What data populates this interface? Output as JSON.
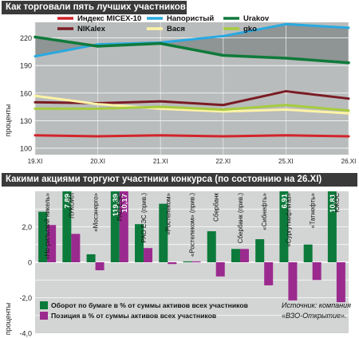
{
  "charts": {
    "top": {
      "title": "Как торговали пять лучших участников",
      "ylabel": "проценты"
    },
    "bottom": {
      "title": "Какими акциями торгуют участники конкурса (по состоянию на 26.XI)",
      "ylabel": "проценты",
      "source_line1": "Источник: компания",
      "source_line2": "«ВЗО-Открытие»."
    }
  },
  "chart_data": [
    {
      "type": "line",
      "title": "Как торговали пять лучших участников",
      "ylabel": "проценты",
      "x": [
        "19.XI",
        "20.XI",
        "21.XI",
        "22.XI",
        "25.XI",
        "26.XI"
      ],
      "yticks": [
        100,
        130,
        160,
        190,
        220
      ],
      "ylim": [
        93,
        237
      ],
      "grid": true,
      "legend": "top",
      "series": [
        {
          "name": "Индекс MICEX-10",
          "color": "#d2242a",
          "values": [
            114,
            113,
            114,
            113,
            114,
            113
          ]
        },
        {
          "name": "Напористый",
          "color": "#29a9e0",
          "values": [
            200,
            213,
            215,
            222,
            235,
            231
          ]
        },
        {
          "name": "Urakov",
          "color": "#0f7a3a",
          "values": [
            221,
            211,
            214,
            201,
            198,
            193
          ]
        },
        {
          "name": "NIKalex",
          "color": "#7a1c24",
          "values": [
            150,
            149,
            151,
            147,
            162,
            154
          ]
        },
        {
          "name": "Вася",
          "color": "#fff3a6",
          "values": [
            157,
            148,
            143,
            140,
            142,
            138
          ]
        },
        {
          "name": "gko",
          "color": "#a6cc3e",
          "values": [
            143,
            143,
            145,
            142,
            147,
            141
          ]
        }
      ]
    },
    {
      "type": "bar",
      "title": "Какими акциями торгуют участники конкурса (по состоянию на 26.XI)",
      "ylabel": "проценты",
      "categories": [
        "«Но-рильский никель»",
        "ЛУКОЙЛ",
        "«Мосэнерго»",
        "РАО ЕЭС",
        "РАО ЕЭС (прив.)",
        "«Ростелеком»",
        "«Ростелеком» (прив.)",
        "Сбербанк",
        "Сбербанк (прив.)",
        "«Сибнефть»",
        "«Сургутнефтегаз»",
        "«Татнефть»",
        "ЮКОС"
      ],
      "ylim": [
        -4.0,
        4.0
      ],
      "yticks": [
        -4.0,
        -2.0,
        0,
        2.0
      ],
      "ytick_labels": [
        "-4,0",
        "-2,0",
        "0",
        "2,0"
      ],
      "grid": true,
      "legend": "bottom",
      "series": [
        {
          "name": "Оборот по бумаге в % от суммы активов всех участников",
          "color": "#0c7a3b",
          "values": [
            2.85,
            7.89,
            0.45,
            119.39,
            2.15,
            3.3,
            0.05,
            1.75,
            0.75,
            1.3,
            6.91,
            1.0,
            10.81
          ],
          "value_labels": [
            "",
            "7,89",
            "",
            "119,39",
            "",
            "",
            "",
            "",
            "",
            "",
            "6,91",
            "",
            "10,81"
          ]
        },
        {
          "name": "Позиция в % от суммы активов всех участников",
          "color": "#9b2a8f",
          "values": [
            2.1,
            1.6,
            -0.45,
            10.17,
            0.8,
            -0.1,
            0.05,
            -0.8,
            0.75,
            -1.3,
            -2.15,
            -1.0,
            -2.25
          ],
          "value_labels": [
            "",
            "",
            "",
            "10,17",
            "",
            "",
            "",
            "",
            "",
            "",
            "",
            "",
            ""
          ]
        }
      ]
    }
  ]
}
